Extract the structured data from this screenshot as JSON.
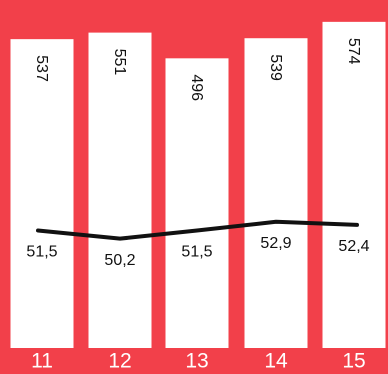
{
  "colors": {
    "background": "#f2404a",
    "bar": "#ffffff",
    "line": "#111111",
    "text_dark": "#111111",
    "text_light": "#ffffff"
  },
  "chart_data": {
    "type": "bar",
    "categories": [
      "11",
      "12",
      "13",
      "14",
      "15"
    ],
    "series": [
      {
        "type": "bar",
        "values": [
          537,
          551,
          496,
          539,
          574
        ],
        "labels": [
          "537",
          "551",
          "496",
          "539",
          "574"
        ]
      },
      {
        "type": "line",
        "values": [
          51.5,
          50.2,
          51.5,
          52.9,
          52.4
        ],
        "labels": [
          "51,5",
          "50,2",
          "51,5",
          "52,9",
          "52,4"
        ]
      }
    ],
    "grid": false,
    "legend": "none"
  }
}
